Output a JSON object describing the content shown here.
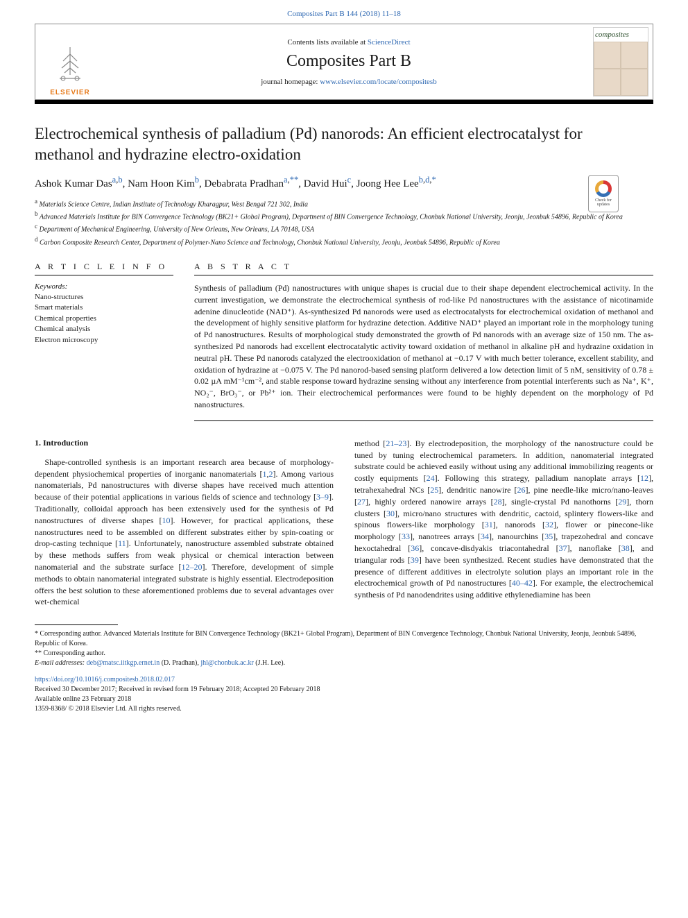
{
  "top_link": "Composites Part B 144 (2018) 11–18",
  "header": {
    "contents_pre": "Contents lists available at ",
    "contents_link": "ScienceDirect",
    "journal": "Composites Part B",
    "homepage_pre": "journal homepage: ",
    "homepage_link": "www.elsevier.com/locate/compositesb",
    "publisher": "ELSEVIER",
    "cover_title": "composites"
  },
  "check_updates": "Check for updates",
  "article": {
    "title": "Electrochemical synthesis of palladium (Pd) nanorods: An efficient electrocatalyst for methanol and hydrazine electro-oxidation",
    "authors_html": "Ashok Kumar Das<sup><a>a</a>,<a>b</a></sup>, Nam Hoon Kim<sup><a>b</a></sup>, Debabrata Pradhan<sup><a>a</a>,<a>**</a></sup>, David Hui<sup><a>c</a></sup>, Joong Hee Lee<sup><a>b</a>,<a>d</a>,<a>*</a></sup>",
    "affiliations": [
      {
        "label": "a",
        "text": "Materials Science Centre, Indian Institute of Technology Kharagpur, West Bengal 721 302, India"
      },
      {
        "label": "b",
        "text": "Advanced Materials Institute for BIN Convergence Technology (BK21+ Global Program), Department of BIN Convergence Technology, Chonbuk National University, Jeonju, Jeonbuk 54896, Republic of Korea"
      },
      {
        "label": "c",
        "text": "Department of Mechanical Engineering, University of New Orleans, New Orleans, LA 70148, USA"
      },
      {
        "label": "d",
        "text": "Carbon Composite Research Center, Department of Polymer-Nano Science and Technology, Chonbuk National University, Jeonju, Jeonbuk 54896, Republic of Korea"
      }
    ]
  },
  "info": {
    "head": "A R T I C L E  I N F O",
    "keywords_label": "Keywords:",
    "keywords": [
      "Nano-structures",
      "Smart materials",
      "Chemical properties",
      "Chemical analysis",
      "Electron microscopy"
    ]
  },
  "abstract": {
    "head": "A B S T R A C T",
    "text": "Synthesis of palladium (Pd) nanostructures with unique shapes is crucial due to their shape dependent electrochemical activity. In the current investigation, we demonstrate the electrochemical synthesis of rod-like Pd nanostructures with the assistance of nicotinamide adenine dinucleotide (NAD⁺). As-synthesized Pd nanorods were used as electrocatalysts for electrochemical oxidation of methanol and the development of highly sensitive platform for hydrazine detection. Additive NAD⁺ played an important role in the morphology tuning of Pd nanostructures. Results of morphological study demonstrated the growth of Pd nanorods with an average size of 150 nm. The as-synthesized Pd nanorods had excellent electrocatalytic activity toward oxidation of methanol in alkaline pH and hydrazine oxidation in neutral pH. These Pd nanorods catalyzed the electrooxidation of methanol at −0.17 V with much better tolerance, excellent stability, and oxidation of hydrazine at −0.075 V. The Pd nanorod-based sensing platform delivered a low detection limit of 5 nM, sensitivity of 0.78 ± 0.02 µA mM⁻¹cm⁻², and stable response toward hydrazine sensing without any interference from potential interferents such as Na⁺, K⁺, NO₂⁻, BrO₃⁻, or Pb²⁺ ion. Their electrochemical performances were found to be highly dependent on the morphology of Pd nanostructures."
  },
  "body": {
    "intro_head": "1. Introduction",
    "col1": "Shape-controlled synthesis is an important research area because of morphology-dependent physiochemical properties of inorganic nanomaterials [<a>1</a>,<a>2</a>]. Among various nanomaterials, Pd nanostructures with diverse shapes have received much attention because of their potential applications in various fields of science and technology [<a>3–9</a>]. Traditionally, colloidal approach has been extensively used for the synthesis of Pd nanostructures of diverse shapes [<a>10</a>]. However, for practical applications, these nanostructures need to be assembled on different substrates either by spin-coating or drop-casting technique [<a>11</a>]. Unfortunately, nanostructure assembled substrate obtained by these methods suffers from weak physical or chemical interaction between nanomaterial and the substrate surface [<a>12–20</a>]. Therefore, development of simple methods to obtain nanomaterial integrated substrate is highly essential. Electrodeposition offers the best solution to these aforementioned problems due to several advantages over wet-chemical",
    "col2": "method [<a>21–23</a>]. By electrodeposition, the morphology of the nanostructure could be tuned by tuning electrochemical parameters. In addition, nanomaterial integrated substrate could be achieved easily without using any additional immobilizing reagents or costly equipments [<a>24</a>]. Following this strategy, palladium nanoplate arrays [<a>12</a>], tetrahexahedral NCs [<a>25</a>], dendritic nanowire [<a>26</a>], pine needle-like micro/nano-leaves [<a>27</a>], highly ordered nanowire arrays [<a>28</a>], single-crystal Pd nanothorns [<a>29</a>], thorn clusters [<a>30</a>], micro/nano structures with dendritic, cactoid, splintery flowers-like and spinous flowers-like morphology [<a>31</a>], nanorods [<a>32</a>], flower or pinecone-like morphology [<a>33</a>], nanotrees arrays [<a>34</a>], nanourchins [<a>35</a>], trapezohedral and concave hexoctahedral [<a>36</a>], concave-disdyakis triacontahedral [<a>37</a>], nanoflake [<a>38</a>], and triangular rods [<a>39</a>] have been synthesized. Recent studies have demonstrated that the presence of different additives in electrolyte solution plays an important role in the electrochemical growth of Pd nanostructures [<a>40–42</a>]. For example, the electrochemical synthesis of Pd nanodendrites using additive ethylenediamine has been"
  },
  "footnotes": {
    "corr1": "* Corresponding author. Advanced Materials Institute for BIN Convergence Technology (BK21+ Global Program), Department of BIN Convergence Technology, Chonbuk National University, Jeonju, Jeonbuk 54896, Republic of Korea.",
    "corr2": "** Corresponding author.",
    "email_label": "E-mail addresses:",
    "email1": "deb@matsc.iitkgp.ernet.in",
    "email1_name": " (D. Pradhan), ",
    "email2": "jhl@chonbuk.ac.kr",
    "email2_name": " (J.H. Lee)."
  },
  "doi": {
    "link": "https://doi.org/10.1016/j.compositesb.2018.02.017",
    "received": "Received 30 December 2017; Received in revised form 19 February 2018; Accepted 20 February 2018",
    "online": "Available online 23 February 2018",
    "copyright": "1359-8368/ © 2018 Elsevier Ltd. All rights reserved."
  },
  "colors": {
    "link": "#2b66b1",
    "elsevier_orange": "#e67817",
    "text": "#1a1a1a",
    "background": "#ffffff"
  }
}
